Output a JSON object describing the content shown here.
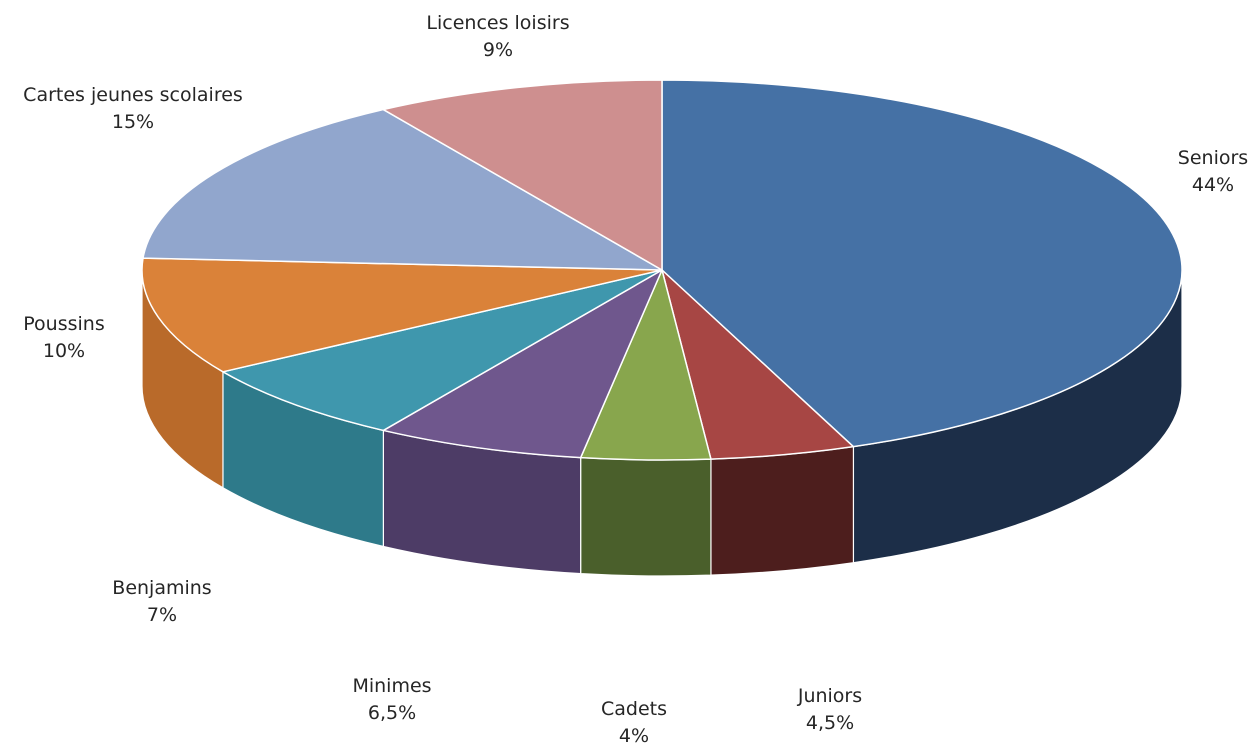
{
  "chart_data": {
    "type": "pie",
    "style": "3d",
    "title": "",
    "start_angle_deg": 0,
    "direction": "clockwise",
    "slices": [
      {
        "label": "Seniors",
        "value": 44,
        "value_label": "44%",
        "color": "#4571a5",
        "side_color": "#1c2e48"
      },
      {
        "label": "Juniors",
        "value": 4.5,
        "value_label": "4,5%",
        "color": "#a74644",
        "side_color": "#4d1e1d"
      },
      {
        "label": "Cadets",
        "value": 4,
        "value_label": "4%",
        "color": "#88a64d",
        "side_color": "#4a5f2b"
      },
      {
        "label": "Minimes",
        "value": 6.5,
        "value_label": "6,5%",
        "color": "#6f578d",
        "side_color": "#4d3c66"
      },
      {
        "label": "Benjamins",
        "value": 7,
        "value_label": "7%",
        "color": "#3f97ad",
        "side_color": "#2e7a8a"
      },
      {
        "label": "Poussins",
        "value": 10,
        "value_label": "10%",
        "color": "#da8239",
        "side_color": "#b96a2a"
      },
      {
        "label": "Cartes jeunes scolaires",
        "value": 15,
        "value_label": "15%",
        "color": "#91a6cd",
        "side_color": "#7588ad"
      },
      {
        "label": "Licences loisirs",
        "value": 9,
        "value_label": "9%",
        "color": "#ce8f8f",
        "side_color": "#a86f6f"
      }
    ]
  }
}
